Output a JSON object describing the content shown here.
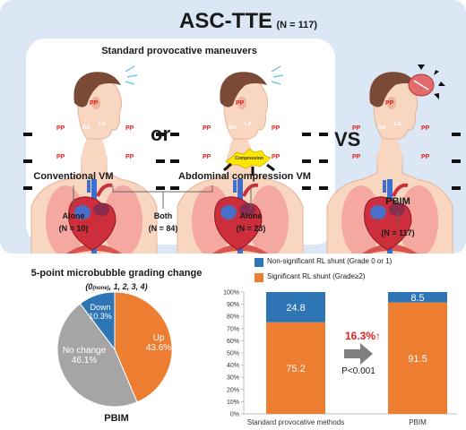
{
  "header": {
    "title": "ASC-TTE",
    "n_label": "(N = 117)"
  },
  "maneuvers": {
    "heading": "Standard provocative maneuvers",
    "or_label": "or",
    "vs_label": "VS",
    "conventional": "Conventional VM",
    "abdominal": "Abdominal compression VM",
    "pbim": "PBIM",
    "pp_label": "PP",
    "ra_label": "RA",
    "la_label": "LA",
    "compression_label": "Compression",
    "groups": {
      "alone1": "Alone",
      "alone1_n": "(N = 10)",
      "both": "Both",
      "both_n": "(N = 84)",
      "alone2": "Alone",
      "alone2_n": "(N = 23)",
      "pbim_n": "(N = 117)"
    }
  },
  "pie": {
    "title": "5-point microbubble grading change",
    "subtitle": "(0(none), 1, 2, 3, 4)",
    "subtitle_main": "(0",
    "subtitle_sub": "(none)",
    "subtitle_rest": ", 1, 2, 3, 4)",
    "footer": "PBIM",
    "slices": [
      {
        "label": "Up",
        "percent_label": "43.6%",
        "value": 43.6,
        "color": "#ed7d31"
      },
      {
        "label": "No change",
        "percent_label": "46.1%",
        "value": 46.1,
        "color": "#a5a5a5"
      },
      {
        "label": "Down",
        "percent_label": "10.3%",
        "value": 10.3,
        "color": "#2e75b6"
      }
    ]
  },
  "chart_data": {
    "type": "bar",
    "categories": [
      "Standard provocative methods",
      "PBIM"
    ],
    "series": [
      {
        "name": "Significant RL shunt (Grade≥2)",
        "values": [
          75.2,
          91.5
        ],
        "color": "#ed7d31"
      },
      {
        "name": "Non-significant RL shunt (Grade 0 or 1)",
        "values": [
          24.8,
          8.5
        ],
        "color": "#2e75b6"
      }
    ],
    "stacked": true,
    "ylim": [
      0,
      100
    ],
    "yticks": [
      "0%",
      "10%",
      "20%",
      "30%",
      "40%",
      "50%",
      "60%",
      "70%",
      "80%",
      "90%",
      "100%"
    ],
    "legend_position": "top",
    "annotations": {
      "increase": "16.3%↑",
      "pvalue": "P<0.001"
    }
  }
}
